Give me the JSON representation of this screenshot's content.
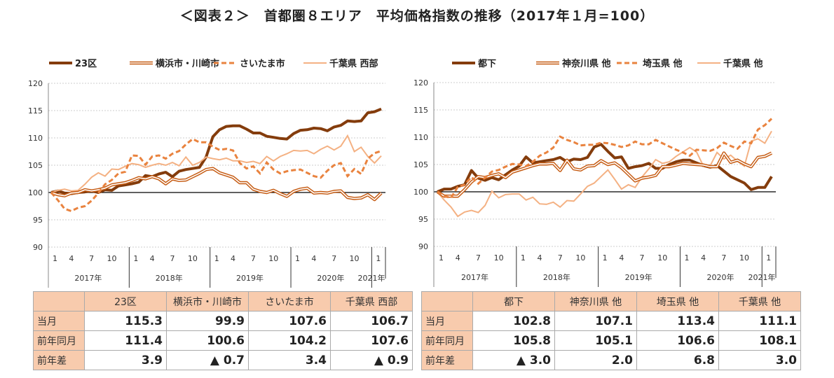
{
  "title": "＜図表２＞　首都圏８エリア　平均価格指数の推移（2017年１月=100）",
  "colors": {
    "s1": "#843C0C",
    "s2": "#C55A11",
    "s3": "#E9833F",
    "s4": "#F4B183",
    "header_bg": "#F8CBAD"
  },
  "chart_data": [
    {
      "type": "line",
      "x_start": "2017-01",
      "x_end": "2021-02",
      "frequency": "monthly",
      "ylim": [
        90,
        120
      ],
      "yticks": [
        90,
        95,
        100,
        105,
        110,
        115,
        120
      ],
      "month_ticks": [
        "1",
        "4",
        "7",
        "10"
      ],
      "years": [
        "2017年",
        "2018年",
        "2019年",
        "2020年",
        "2021年"
      ],
      "grid": true,
      "legend": "top",
      "series": [
        {
          "name": "23区",
          "style": "thick",
          "values": [
            100,
            100.3,
            99.9,
            99.8,
            100,
            100.1,
            100.3,
            100,
            100.5,
            100.4,
            101.2,
            101.4,
            101.6,
            101.9,
            103.1,
            102.9,
            103.4,
            103.7,
            102.9,
            103.9,
            104.2,
            104.4,
            104.6,
            106.5,
            110.2,
            111.5,
            112.1,
            112.2,
            112.2,
            111.6,
            110.9,
            110.9,
            110.3,
            110.1,
            109.9,
            109.8,
            110.8,
            111.4,
            111.5,
            111.8,
            111.7,
            111.3,
            112.0,
            112.3,
            113.1,
            113.0,
            113.1,
            114.6,
            114.8,
            115.3
          ]
        },
        {
          "name": "横浜市・川崎市",
          "style": "double",
          "values": [
            100,
            99.6,
            99.4,
            99.9,
            100,
            100.5,
            100.3,
            100.5,
            100.8,
            101.4,
            101.6,
            101.8,
            102.2,
            102.7,
            102.5,
            102.9,
            102.5,
            101.6,
            102.5,
            102.2,
            102.3,
            102.9,
            103.5,
            104.2,
            104.4,
            103.6,
            103.2,
            102.8,
            101.8,
            101.8,
            100.6,
            100.2,
            100,
            100.4,
            99.8,
            99.3,
            100.2,
            100.6,
            100.8,
            99.9,
            100,
            99.9,
            100.2,
            100.3,
            99.1,
            98.9,
            99,
            99.6,
            98.7,
            99.9
          ]
        },
        {
          "name": "さいたま市",
          "style": "dashed",
          "values": [
            100,
            98.6,
            97,
            96.6,
            97.2,
            97.5,
            98.5,
            99.9,
            101.5,
            102.3,
            103.5,
            103.8,
            106.8,
            106.7,
            105.1,
            106.6,
            106.8,
            106.2,
            107.1,
            107.6,
            108.8,
            109.8,
            109.2,
            109.2,
            108.4,
            107.8,
            108,
            107.7,
            105.4,
            104.4,
            104.8,
            103.5,
            105.5,
            104.2,
            103.5,
            103.9,
            104.1,
            104.2,
            103.6,
            103,
            102.7,
            104,
            105,
            105.4,
            103,
            104.3,
            103.4,
            106.2,
            107.2,
            107.6
          ]
        },
        {
          "name": "千葉県 西部",
          "style": "light",
          "values": [
            100,
            100.4,
            100.6,
            100.3,
            100.4,
            101.5,
            102.8,
            103.6,
            103,
            104.3,
            104.2,
            104.8,
            105.3,
            105.1,
            104.6,
            105,
            105.3,
            105,
            105.5,
            104.9,
            106.5,
            105,
            105.5,
            106.5,
            106.2,
            106,
            106.3,
            105.8,
            105.8,
            105.5,
            105.7,
            105.3,
            106.6,
            105.8,
            106.6,
            107.1,
            107.7,
            107.6,
            107.7,
            107.1,
            107.9,
            108.5,
            107.8,
            108.5,
            110.4,
            107.5,
            108.3,
            106.6,
            105.4,
            106.7
          ]
        }
      ]
    },
    {
      "type": "line",
      "x_start": "2017-01",
      "x_end": "2021-02",
      "frequency": "monthly",
      "ylim": [
        90,
        120
      ],
      "yticks": [
        90,
        95,
        100,
        105,
        110,
        115,
        120
      ],
      "month_ticks": [
        "1",
        "4",
        "7",
        "10"
      ],
      "years": [
        "2017年",
        "2018年",
        "2019年",
        "2020年",
        "2021年"
      ],
      "grid": true,
      "legend": "top",
      "series": [
        {
          "name": "都下",
          "style": "thick",
          "values": [
            100,
            100.5,
            100.5,
            101,
            101.3,
            103.9,
            102.5,
            102.1,
            102.6,
            102.2,
            103.1,
            104,
            104.7,
            106.4,
            105.3,
            105.5,
            105.7,
            105.9,
            106.3,
            105.5,
            106,
            105.9,
            106.3,
            108.2,
            108.7,
            107.4,
            106.2,
            106.4,
            104.3,
            104.6,
            104.8,
            105.2,
            104.3,
            104.3,
            105,
            105.5,
            105.8,
            105.8,
            105.3,
            104.8,
            104.5,
            104.8,
            103.8,
            102.8,
            102.2,
            101.6,
            100.4,
            100.8,
            100.8,
            102.8
          ]
        },
        {
          "name": "神奈川県 他",
          "style": "double",
          "values": [
            100,
            99.2,
            99.2,
            99.2,
            100.4,
            101.8,
            102.8,
            102.6,
            103,
            103.3,
            102.6,
            103.6,
            104,
            104.4,
            104.8,
            105.1,
            105.1,
            105.2,
            103.9,
            105.8,
            104.2,
            104,
            104.7,
            104.8,
            105.7,
            105,
            105.3,
            104.4,
            103.2,
            102,
            102.5,
            102.7,
            103,
            104.6,
            104.6,
            104.9,
            105.2,
            105.1,
            105,
            104.9,
            104.6,
            104.6,
            107.1,
            105.4,
            105.8,
            105.1,
            104.6,
            106.3,
            106.5,
            107.1
          ]
        },
        {
          "name": "埼玉県 他",
          "style": "dashed",
          "values": [
            100,
            99.2,
            98.9,
            100.9,
            101.3,
            102.7,
            101.5,
            102.6,
            103.7,
            104,
            104.6,
            105.1,
            105,
            104.7,
            105.5,
            106.6,
            107.2,
            108.1,
            110.1,
            109.5,
            109.1,
            108.5,
            108.6,
            108.6,
            109,
            108.9,
            108.6,
            108.2,
            108.5,
            109.2,
            108.7,
            108.7,
            109.5,
            108.9,
            108.3,
            107.7,
            107.2,
            106.6,
            107.7,
            107.6,
            107.5,
            108,
            109,
            108.4,
            107.9,
            109.2,
            108.9,
            111.4,
            112.2,
            113.4
          ]
        },
        {
          "name": "千葉県 他",
          "style": "light",
          "values": [
            100,
            98.5,
            97.2,
            95.5,
            96.3,
            96.6,
            96.2,
            97.5,
            100.1,
            98.9,
            99.5,
            99.6,
            99.6,
            98.5,
            99,
            97.8,
            97.7,
            98.1,
            97.2,
            98.4,
            98.3,
            99.6,
            101,
            101.6,
            102.8,
            104,
            102.3,
            100.5,
            101.3,
            100.8,
            102.7,
            104.2,
            105.9,
            105.2,
            105.5,
            106.5,
            107.3,
            108.1,
            107.3,
            104.7,
            104.8,
            107.2,
            106,
            106.7,
            105.6,
            104.7,
            109.3,
            109.7,
            108.9,
            111.1
          ]
        }
      ]
    }
  ],
  "tables": [
    {
      "columns": [
        "23区",
        "横浜市・川崎市",
        "さいたま市",
        "千葉県 西部"
      ],
      "rows": [
        {
          "label": "当月",
          "values": [
            "115.3",
            "99.9",
            "107.6",
            "106.7"
          ]
        },
        {
          "label": "前年同月",
          "values": [
            "111.4",
            "100.6",
            "104.2",
            "107.6"
          ]
        },
        {
          "label": "前年差",
          "values": [
            "3.9",
            "▲ 0.7",
            "3.4",
            "▲ 0.9"
          ]
        }
      ]
    },
    {
      "columns": [
        "都下",
        "神奈川県 他",
        "埼玉県 他",
        "千葉県 他"
      ],
      "rows": [
        {
          "label": "当月",
          "values": [
            "102.8",
            "107.1",
            "113.4",
            "111.1"
          ]
        },
        {
          "label": "前年同月",
          "values": [
            "105.8",
            "105.1",
            "106.6",
            "108.1"
          ]
        },
        {
          "label": "前年差",
          "values": [
            "▲ 3.0",
            "2.0",
            "6.8",
            "3.0"
          ]
        }
      ]
    }
  ]
}
